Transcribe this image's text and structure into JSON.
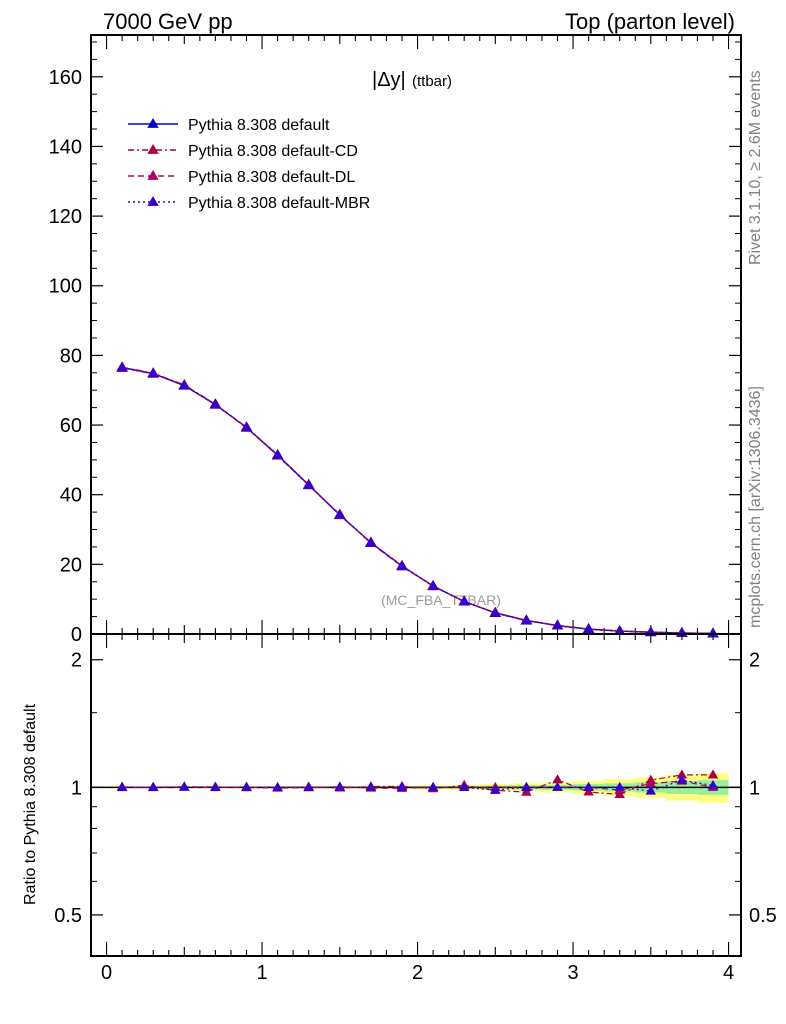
{
  "header": {
    "left": "7000 GeV pp",
    "right": "Top (parton level)"
  },
  "side_labels": {
    "rivet": "Rivet 3.1.10, ≥ 2.6M events",
    "mcplots": "mcplots.cern.ch [arXiv:1306.3436]"
  },
  "chart_data": [
    {
      "type": "line",
      "title": "|Δy| (ttbar)",
      "title_main": "|Δy|",
      "title_sub": "(ttbar)",
      "watermark": "(MC_FBA_TTBAR)",
      "xlabel": "",
      "ylabel": "",
      "xlim": [
        -0.1,
        4.08
      ],
      "ylim": [
        0,
        172
      ],
      "yticks": [
        0,
        20,
        40,
        60,
        80,
        100,
        120,
        140,
        160
      ],
      "ytick_labels": [
        "0",
        "20",
        "40",
        "60",
        "80",
        "100",
        "120",
        "140",
        "160"
      ],
      "x": [
        0.1,
        0.3,
        0.5,
        0.7,
        0.9,
        1.1,
        1.3,
        1.5,
        1.7,
        1.9,
        2.1,
        2.3,
        2.5,
        2.7,
        2.9,
        3.1,
        3.3,
        3.5,
        3.7,
        3.9
      ],
      "series": [
        {
          "name": "Pythia 8.308 default",
          "color": "#0000cc",
          "dash": "solid",
          "values": [
            76.5,
            74.8,
            71.3,
            65.9,
            59.3,
            51.4,
            42.8,
            34.2,
            26.2,
            19.5,
            13.8,
            9.3,
            6.1,
            3.9,
            2.4,
            1.4,
            0.85,
            0.5,
            0.28,
            0.15
          ]
        },
        {
          "name": "Pythia 8.308 default-CD",
          "color": "#aa0044",
          "dash": "dashdot",
          "values": [
            76.6,
            74.9,
            71.5,
            66.0,
            59.2,
            51.3,
            42.9,
            34.1,
            26.3,
            19.6,
            13.7,
            9.4,
            6.0,
            3.8,
            2.5,
            1.4,
            0.82,
            0.52,
            0.3,
            0.16
          ]
        },
        {
          "name": "Pythia 8.308 default-DL",
          "color": "#aa0066",
          "dash": "dashed",
          "values": [
            76.4,
            74.7,
            71.4,
            65.8,
            59.4,
            51.2,
            42.7,
            34.3,
            26.1,
            19.4,
            13.8,
            9.3,
            6.1,
            3.9,
            2.4,
            1.4,
            0.84,
            0.51,
            0.29,
            0.15
          ]
        },
        {
          "name": "Pythia 8.308 default-MBR",
          "color": "#3300cc",
          "dash": "dotted",
          "values": [
            76.5,
            74.8,
            71.4,
            65.9,
            59.3,
            51.4,
            42.8,
            34.2,
            26.2,
            19.5,
            13.8,
            9.3,
            6.0,
            3.9,
            2.4,
            1.4,
            0.85,
            0.5,
            0.29,
            0.15
          ]
        }
      ],
      "legend_position": "top-left"
    },
    {
      "type": "line",
      "title": "",
      "xlabel": "",
      "ylabel": "Ratio to Pythia 8.308 default",
      "xlim": [
        -0.1,
        4.08
      ],
      "ylim": [
        0.4,
        2.3
      ],
      "yscale": "log",
      "yticks": [
        0.5,
        1,
        2
      ],
      "ytick_labels": [
        "0.5",
        "1",
        "2"
      ],
      "xticks": [
        0,
        1,
        2,
        3,
        4
      ],
      "xtick_labels": [
        "0",
        "1",
        "2",
        "3",
        "4"
      ],
      "x": [
        0.1,
        0.3,
        0.5,
        0.7,
        0.9,
        1.1,
        1.3,
        1.5,
        1.7,
        1.9,
        2.1,
        2.3,
        2.5,
        2.7,
        2.9,
        3.1,
        3.3,
        3.5,
        3.7,
        3.9
      ],
      "band_green_halfwidth": [
        0.003,
        0.003,
        0.003,
        0.003,
        0.003,
        0.003,
        0.003,
        0.004,
        0.004,
        0.005,
        0.006,
        0.007,
        0.009,
        0.011,
        0.014,
        0.018,
        0.022,
        0.028,
        0.035,
        0.04
      ],
      "band_yellow_halfwidth": [
        0.006,
        0.006,
        0.006,
        0.006,
        0.006,
        0.006,
        0.007,
        0.008,
        0.009,
        0.01,
        0.012,
        0.014,
        0.018,
        0.022,
        0.028,
        0.035,
        0.045,
        0.055,
        0.07,
        0.08
      ],
      "series": [
        {
          "name": "Pythia 8.308 default-CD",
          "color": "#aa0044",
          "dash": "dashdot",
          "values": [
            1.002,
            1.001,
            1.003,
            1.002,
            0.998,
            0.997,
            1.002,
            0.997,
            1.004,
            1.005,
            0.993,
            1.011,
            0.984,
            0.974,
            1.042,
            0.975,
            0.962,
            1.04,
            1.07,
            1.07
          ]
        },
        {
          "name": "Pythia 8.308 default-DL",
          "color": "#aa0066",
          "dash": "dashed",
          "values": [
            0.999,
            0.999,
            1.001,
            0.999,
            1.002,
            0.996,
            0.998,
            1.003,
            0.996,
            0.995,
            1.0,
            1.0,
            1.0,
            1.0,
            1.0,
            1.0,
            0.985,
            1.02,
            1.035,
            1.0
          ]
        },
        {
          "name": "Pythia 8.308 default-MBR",
          "color": "#3300cc",
          "dash": "dotted",
          "values": [
            1.0,
            1.0,
            1.001,
            1.0,
            1.0,
            1.0,
            1.0,
            1.0,
            1.0,
            1.0,
            1.0,
            1.0,
            0.985,
            1.0,
            1.0,
            1.0,
            1.0,
            0.98,
            1.04,
            1.01
          ]
        }
      ]
    }
  ]
}
